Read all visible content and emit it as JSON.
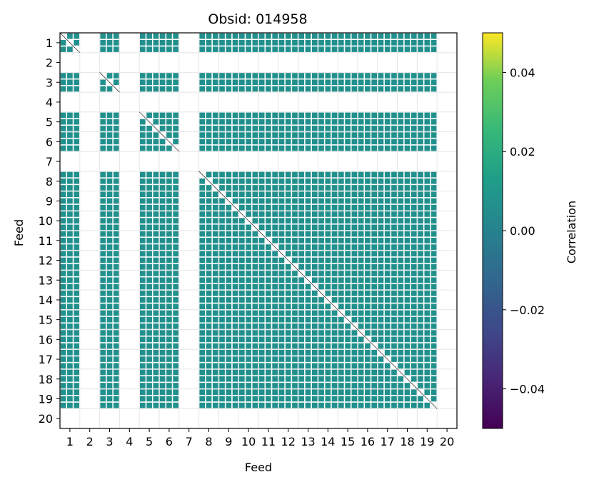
{
  "chart_data": {
    "type": "heatmap",
    "title": "Obsid: 014958",
    "xlabel": "Feed",
    "ylabel": "Feed",
    "x_ticks": [
      "1",
      "2",
      "3",
      "4",
      "5",
      "6",
      "7",
      "8",
      "9",
      "10",
      "11",
      "12",
      "13",
      "14",
      "15",
      "16",
      "17",
      "18",
      "19",
      "20"
    ],
    "y_ticks": [
      "1",
      "2",
      "3",
      "4",
      "5",
      "6",
      "7",
      "8",
      "9",
      "10",
      "11",
      "12",
      "13",
      "14",
      "15",
      "16",
      "17",
      "18",
      "19",
      "20"
    ],
    "feeds_with_data": [
      1,
      3,
      5,
      6,
      8,
      9,
      10,
      11,
      12,
      13,
      14,
      15,
      16,
      17,
      18,
      19
    ],
    "feeds_blank": [
      2,
      4,
      7,
      20
    ],
    "cell_value": 0.0,
    "colorbar": {
      "label": "Correlation",
      "colormap": "viridis",
      "vmin": -0.05,
      "vmax": 0.05,
      "ticks": [
        -0.04,
        -0.02,
        0.0,
        0.02,
        0.04
      ],
      "tick_labels": [
        "−0.04",
        "−0.02",
        "0.00",
        "0.02",
        "0.04"
      ]
    },
    "colors": {
      "cell": "#21908d",
      "grid": "#e6e6e6",
      "diagonal": "#000000"
    }
  }
}
